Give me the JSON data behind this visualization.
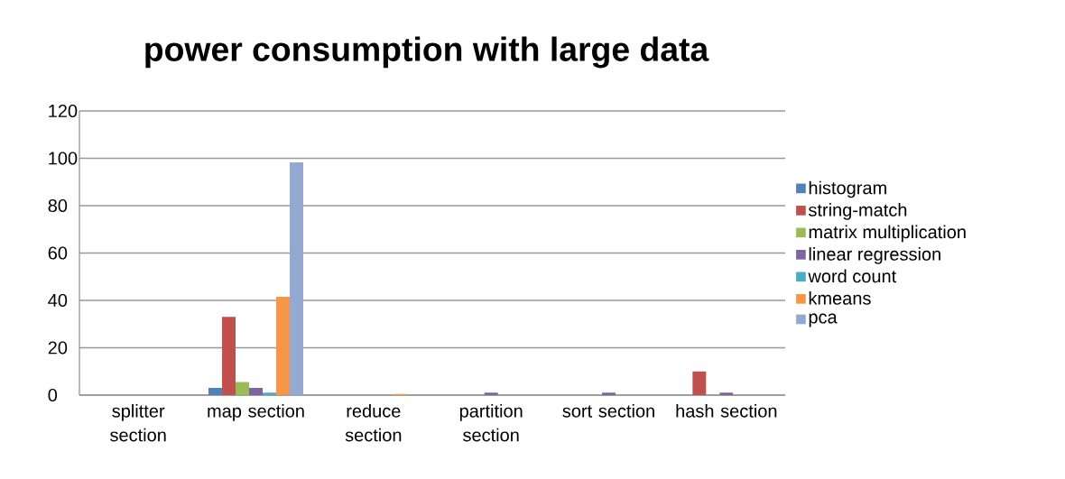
{
  "chart_data": {
    "type": "bar",
    "title": "power consumption with large data",
    "categories": [
      "splitter section",
      "map section",
      "reduce section",
      "partition section",
      "sort section",
      "hash section"
    ],
    "series": [
      {
        "name": "histogram",
        "color": "#4f81bd",
        "values": [
          0,
          3,
          0,
          0,
          0,
          0
        ]
      },
      {
        "name": "string-match",
        "color": "#c0504d",
        "values": [
          0,
          33,
          0,
          0,
          0,
          10
        ]
      },
      {
        "name": "matrix multiplication",
        "color": "#9bbb59",
        "values": [
          0,
          5.5,
          0,
          0,
          0,
          0
        ]
      },
      {
        "name": "linear regression",
        "color": "#8064a2",
        "values": [
          0,
          3,
          0,
          1,
          1,
          1
        ]
      },
      {
        "name": "word count",
        "color": "#4bacc6",
        "values": [
          0,
          1,
          0,
          0,
          0,
          0
        ]
      },
      {
        "name": "kmeans",
        "color": "#f79646",
        "values": [
          0,
          41.5,
          0.5,
          0,
          0,
          0
        ]
      },
      {
        "name": "pca",
        "color": "#93a9d1",
        "values": [
          0,
          98.3,
          0,
          0,
          0,
          0
        ]
      }
    ],
    "ylim": [
      0,
      120
    ],
    "yticks": [
      0,
      20,
      40,
      60,
      80,
      100,
      120
    ],
    "grid": "y",
    "legend": "right"
  }
}
